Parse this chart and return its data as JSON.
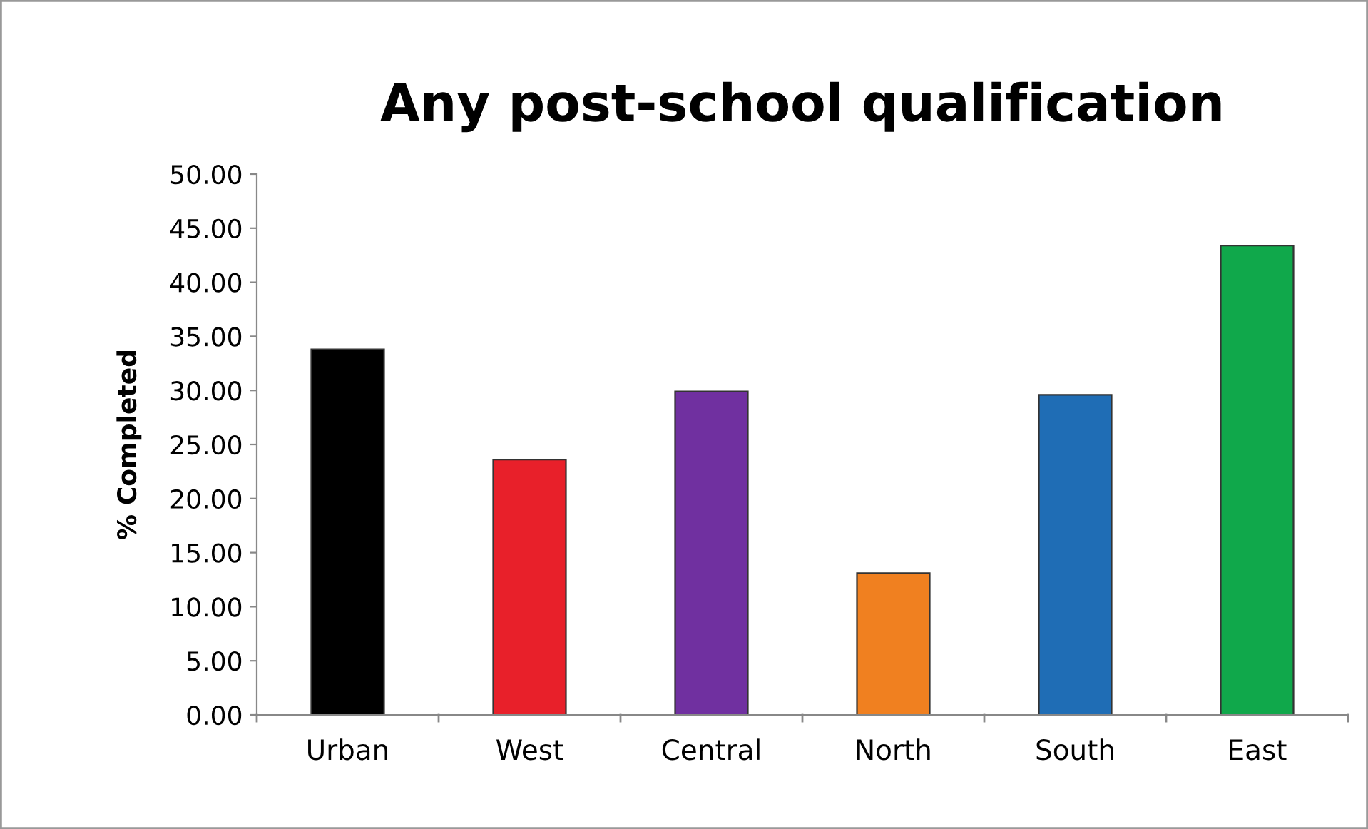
{
  "chart_data": {
    "type": "bar",
    "title": "Any post-school qualification",
    "ylabel": "% Completed",
    "categories": [
      "Urban",
      "West",
      "Central",
      "North",
      "South",
      "East"
    ],
    "values": [
      33.8,
      23.6,
      29.9,
      13.1,
      29.6,
      43.4
    ],
    "colors": [
      "#000000",
      "#e8202a",
      "#7030a0",
      "#f08020",
      "#1f6db5",
      "#10a84b"
    ],
    "ylim": [
      0,
      50
    ],
    "yticks": [
      {
        "value": 0,
        "label": "0.00"
      },
      {
        "value": 5,
        "label": "5.00"
      },
      {
        "value": 10,
        "label": "10.00"
      },
      {
        "value": 15,
        "label": "15.00"
      },
      {
        "value": 20,
        "label": "20.00"
      },
      {
        "value": 25,
        "label": "25.00"
      },
      {
        "value": 30,
        "label": "30.00"
      },
      {
        "value": 35,
        "label": "35.00"
      },
      {
        "value": 40,
        "label": "40.00"
      },
      {
        "value": 45,
        "label": "45.00"
      },
      {
        "value": 50,
        "label": "50.00"
      }
    ],
    "grid": false,
    "legend": false
  }
}
